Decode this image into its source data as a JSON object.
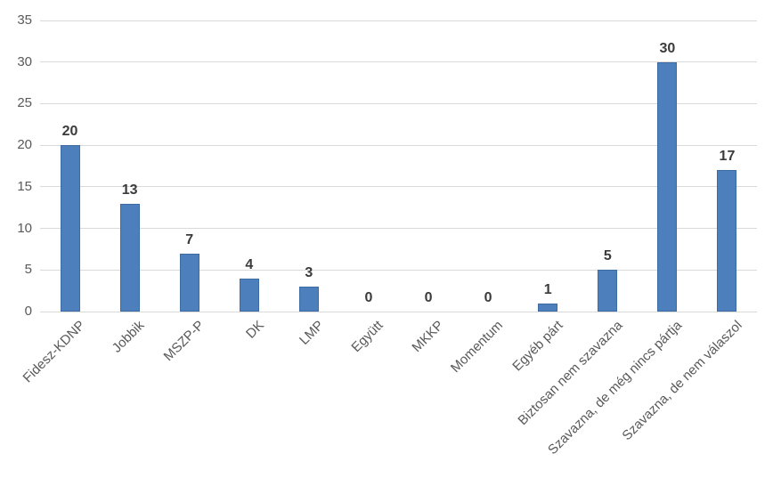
{
  "chart_data": {
    "type": "bar",
    "title": "",
    "xlabel": "",
    "ylabel": "",
    "categories": [
      "Fidesz-KDNP",
      "Jobbik",
      "MSZP-P",
      "DK",
      "LMP",
      "Együtt",
      "MKKP",
      "Momentum",
      "Egyéb párt",
      "Biztosan nem szavazna",
      "Szavazna, de még nincs pártja",
      "Szavazna, de nem válaszol"
    ],
    "values": [
      20,
      13,
      7,
      4,
      3,
      0,
      0,
      0,
      1,
      5,
      30,
      17
    ],
    "data_labels": [
      "20",
      "13",
      "7",
      "4",
      "3",
      "0",
      "0",
      "0",
      "1",
      "5",
      "30",
      "17"
    ],
    "ylim": [
      0,
      35
    ],
    "yticks": [
      "0",
      "5",
      "10",
      "15",
      "20",
      "25",
      "30",
      "35"
    ],
    "ytick_interval": 5,
    "grid": true,
    "legend_position": "none",
    "colors": {
      "bar_fill": "#4e7fbd",
      "bar_border": "#3d6ba3",
      "gridline": "#d9d9d9",
      "axis_tick_text": "#595959",
      "category_text": "#595959",
      "value_label_text": "#3b3b3b",
      "background": "#ffffff"
    }
  }
}
